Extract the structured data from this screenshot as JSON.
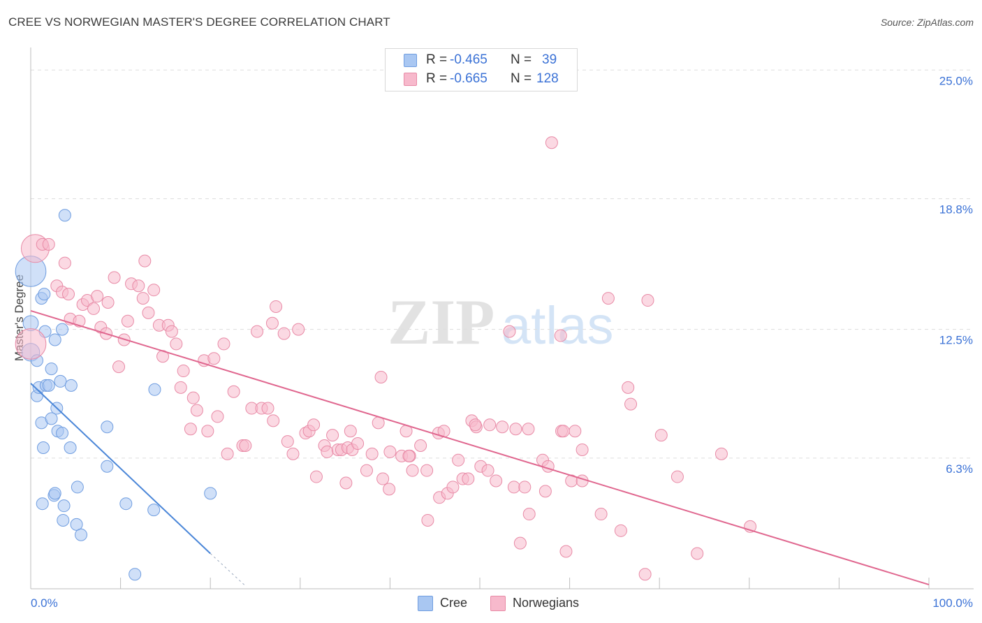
{
  "title": "CREE VS NORWEGIAN MASTER'S DEGREE CORRELATION CHART",
  "source": "Source: ZipAtlas.com",
  "watermark": {
    "part1": "ZIP",
    "part2": "atlas"
  },
  "legend_top": [
    {
      "r_label": "R =",
      "r_value": "-0.465",
      "n_label": "N =",
      "n_value": "39",
      "color": "#a9c7f2",
      "border": "#6f9de0"
    },
    {
      "r_label": "R =",
      "r_value": "-0.665",
      "n_label": "N =",
      "n_value": "128",
      "color": "#f7b9cc",
      "border": "#e88aa6"
    }
  ],
  "legend_bottom": [
    {
      "label": "Cree",
      "color": "#a9c7f2",
      "border": "#6f9de0"
    },
    {
      "label": "Norwegians",
      "color": "#f7b9cc",
      "border": "#e88aa6"
    }
  ],
  "chart_data": {
    "type": "scatter",
    "title": "CREE VS NORWEGIAN MASTER'S DEGREE CORRELATION CHART",
    "xlabel": "",
    "ylabel": "Master's Degree",
    "xlim": [
      0,
      100
    ],
    "ylim": [
      0,
      25.75
    ],
    "x_tick_labels": [
      "0.0%",
      "100.0%"
    ],
    "y_ticks": [
      6.3,
      12.5,
      18.8,
      25.0
    ],
    "y_tick_labels": [
      "6.3%",
      "12.5%",
      "18.8%",
      "25.0%"
    ],
    "x_grid_marks": [
      0,
      10,
      20,
      30,
      40,
      50,
      60,
      70,
      80,
      90,
      100
    ],
    "colors": {
      "cree": "#4a86d8",
      "norwegians": "#e0678f",
      "axis_label": "#3b72d6"
    },
    "series": [
      {
        "name": "Cree",
        "color": "#a9c7f2",
        "stroke": "#6f9de0",
        "trend": {
          "x": [
            0,
            20
          ],
          "y": [
            9.9,
            1.7
          ],
          "dash_to_x": 24,
          "dash_to_y": 0.1
        },
        "points": [
          [
            0.0,
            15.3,
            24
          ],
          [
            0.0,
            11.4,
            14
          ],
          [
            0.0,
            12.8,
            12
          ],
          [
            0.7,
            11.0,
            10
          ],
          [
            0.7,
            9.3,
            10
          ],
          [
            0.9,
            9.7,
            10
          ],
          [
            1.2,
            14.0,
            10
          ],
          [
            1.5,
            14.2,
            10
          ],
          [
            1.6,
            12.4,
            10
          ],
          [
            1.7,
            9.8,
            10
          ],
          [
            2.0,
            9.8,
            10
          ],
          [
            2.3,
            10.6,
            10
          ],
          [
            2.7,
            12.0,
            10
          ],
          [
            2.9,
            8.7,
            10
          ],
          [
            3.0,
            7.6,
            10
          ],
          [
            3.3,
            10.0,
            10
          ],
          [
            3.5,
            12.5,
            10
          ],
          [
            3.5,
            7.5,
            10
          ],
          [
            3.8,
            18.0,
            10
          ],
          [
            1.2,
            8.0,
            10
          ],
          [
            2.3,
            8.2,
            10
          ],
          [
            4.5,
            9.8,
            10
          ],
          [
            1.4,
            6.8,
            10
          ],
          [
            4.4,
            6.8,
            10
          ],
          [
            2.6,
            4.5,
            10
          ],
          [
            2.7,
            4.6,
            10
          ],
          [
            1.3,
            4.1,
            10
          ],
          [
            3.7,
            4.0,
            10
          ],
          [
            5.2,
            4.9,
            10
          ],
          [
            3.6,
            3.3,
            10
          ],
          [
            5.1,
            3.1,
            10
          ],
          [
            5.6,
            2.6,
            10
          ],
          [
            8.5,
            7.8,
            10
          ],
          [
            8.5,
            5.9,
            10
          ],
          [
            10.6,
            4.1,
            10
          ],
          [
            13.8,
            9.6,
            10
          ],
          [
            13.7,
            3.8,
            10
          ],
          [
            20.0,
            4.6,
            10
          ],
          [
            11.6,
            0.7,
            10
          ]
        ]
      },
      {
        "name": "Norwegians",
        "color": "#f7b9cc",
        "stroke": "#e88aa6",
        "trend": {
          "x": [
            0,
            100
          ],
          "y": [
            13.4,
            0.2
          ]
        },
        "points": [
          [
            0.5,
            16.4,
            22
          ],
          [
            0.0,
            11.8,
            24
          ],
          [
            1.3,
            16.6,
            10
          ],
          [
            2.0,
            16.6,
            10
          ],
          [
            3.8,
            15.7,
            10
          ],
          [
            2.9,
            14.6,
            10
          ],
          [
            3.5,
            14.3,
            10
          ],
          [
            4.2,
            14.2,
            10
          ],
          [
            4.4,
            13.0,
            10
          ],
          [
            5.4,
            12.9,
            10
          ],
          [
            5.8,
            13.7,
            10
          ],
          [
            6.3,
            13.9,
            10
          ],
          [
            7.0,
            13.5,
            10
          ],
          [
            7.4,
            14.1,
            10
          ],
          [
            8.6,
            13.8,
            10
          ],
          [
            7.8,
            12.6,
            10
          ],
          [
            8.4,
            12.3,
            10
          ],
          [
            9.3,
            15.0,
            10
          ],
          [
            10.4,
            12.0,
            10
          ],
          [
            10.8,
            12.9,
            10
          ],
          [
            11.2,
            14.7,
            10
          ],
          [
            12.0,
            14.6,
            10
          ],
          [
            12.5,
            14.0,
            10
          ],
          [
            12.7,
            15.8,
            10
          ],
          [
            13.1,
            13.3,
            10
          ],
          [
            13.7,
            14.4,
            10
          ],
          [
            14.3,
            12.7,
            10
          ],
          [
            14.7,
            11.2,
            10
          ],
          [
            15.3,
            12.7,
            10
          ],
          [
            15.7,
            12.4,
            10
          ],
          [
            16.2,
            11.8,
            10
          ],
          [
            17.0,
            10.5,
            10
          ],
          [
            9.8,
            10.7,
            10
          ],
          [
            16.7,
            9.7,
            10
          ],
          [
            18.1,
            9.2,
            10
          ],
          [
            18.5,
            8.6,
            10
          ],
          [
            19.3,
            11.0,
            10
          ],
          [
            20.4,
            11.1,
            10
          ],
          [
            20.8,
            8.3,
            10
          ],
          [
            21.5,
            11.8,
            10
          ],
          [
            17.8,
            7.7,
            10
          ],
          [
            19.7,
            7.6,
            10
          ],
          [
            22.6,
            9.5,
            10
          ],
          [
            23.6,
            6.9,
            10
          ],
          [
            23.9,
            6.9,
            10
          ],
          [
            24.6,
            8.7,
            10
          ],
          [
            25.2,
            12.4,
            10
          ],
          [
            25.7,
            8.7,
            10
          ],
          [
            26.4,
            8.7,
            10
          ],
          [
            26.9,
            12.8,
            10
          ],
          [
            27.3,
            13.6,
            10
          ],
          [
            21.9,
            6.5,
            10
          ],
          [
            27.0,
            8.1,
            10
          ],
          [
            28.2,
            12.3,
            10
          ],
          [
            28.6,
            7.1,
            10
          ],
          [
            29.2,
            6.5,
            10
          ],
          [
            29.8,
            12.5,
            10
          ],
          [
            30.6,
            7.5,
            10
          ],
          [
            31.0,
            7.6,
            10
          ],
          [
            31.5,
            7.9,
            10
          ],
          [
            31.8,
            5.4,
            10
          ],
          [
            32.7,
            6.9,
            10
          ],
          [
            33.0,
            6.6,
            10
          ],
          [
            33.6,
            7.4,
            10
          ],
          [
            34.2,
            6.7,
            10
          ],
          [
            34.6,
            6.7,
            10
          ],
          [
            35.3,
            6.8,
            10
          ],
          [
            35.6,
            7.6,
            10
          ],
          [
            35.8,
            6.7,
            10
          ],
          [
            36.4,
            7.0,
            10
          ],
          [
            37.4,
            5.7,
            10
          ],
          [
            38.0,
            6.5,
            10
          ],
          [
            38.7,
            8.0,
            10
          ],
          [
            35.1,
            5.1,
            10
          ],
          [
            39.2,
            5.3,
            10
          ],
          [
            39.9,
            4.8,
            10
          ],
          [
            39.0,
            10.2,
            10
          ],
          [
            40.0,
            6.6,
            10
          ],
          [
            41.3,
            6.4,
            10
          ],
          [
            41.8,
            7.6,
            10
          ],
          [
            42.2,
            6.4,
            10
          ],
          [
            42.5,
            5.7,
            10
          ],
          [
            43.4,
            6.9,
            10
          ],
          [
            44.1,
            5.7,
            10
          ],
          [
            44.2,
            3.3,
            10
          ],
          [
            42.1,
            6.4,
            10
          ],
          [
            45.4,
            7.5,
            10
          ],
          [
            46.0,
            7.6,
            10
          ],
          [
            45.5,
            4.4,
            10
          ],
          [
            46.4,
            4.6,
            10
          ],
          [
            47.0,
            4.9,
            10
          ],
          [
            47.6,
            6.2,
            10
          ],
          [
            48.1,
            5.3,
            10
          ],
          [
            48.7,
            5.3,
            10
          ],
          [
            49.1,
            8.1,
            10
          ],
          [
            50.1,
            5.9,
            10
          ],
          [
            49.6,
            7.8,
            10
          ],
          [
            50.9,
            5.7,
            10
          ],
          [
            51.1,
            7.9,
            10
          ],
          [
            51.8,
            5.2,
            10
          ],
          [
            49.5,
            7.9,
            10
          ],
          [
            52.5,
            7.8,
            10
          ],
          [
            53.3,
            12.4,
            10
          ],
          [
            53.8,
            4.9,
            10
          ],
          [
            54.0,
            7.7,
            10
          ],
          [
            54.5,
            2.2,
            10
          ],
          [
            55.0,
            4.9,
            10
          ],
          [
            55.5,
            3.6,
            10
          ],
          [
            57.0,
            6.2,
            10
          ],
          [
            57.3,
            4.7,
            10
          ],
          [
            57.6,
            5.9,
            10
          ],
          [
            55.4,
            7.7,
            10
          ],
          [
            59.1,
            7.6,
            10
          ],
          [
            59.6,
            1.8,
            10
          ],
          [
            60.2,
            5.2,
            10
          ],
          [
            60.6,
            7.6,
            10
          ],
          [
            58.0,
            21.5,
            10
          ],
          [
            59.0,
            12.2,
            10
          ],
          [
            59.3,
            7.6,
            10
          ],
          [
            61.4,
            6.7,
            10
          ],
          [
            61.4,
            5.2,
            10
          ],
          [
            63.5,
            3.6,
            10
          ],
          [
            64.3,
            14.0,
            10
          ],
          [
            65.7,
            2.8,
            10
          ],
          [
            66.5,
            9.7,
            10
          ],
          [
            66.8,
            8.9,
            10
          ],
          [
            68.4,
            0.7,
            10
          ],
          [
            68.7,
            13.9,
            10
          ],
          [
            70.2,
            7.4,
            10
          ],
          [
            72.0,
            5.4,
            10
          ],
          [
            74.2,
            1.7,
            10
          ],
          [
            76.9,
            6.5,
            10
          ],
          [
            80.1,
            3.0,
            10
          ]
        ]
      }
    ]
  }
}
